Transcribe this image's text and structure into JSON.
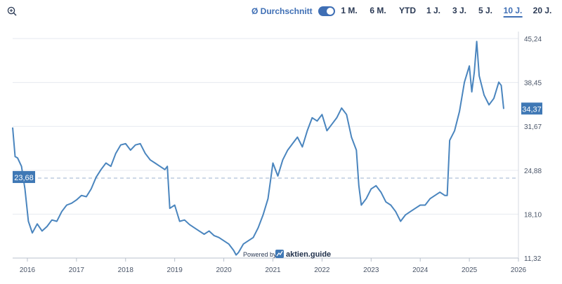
{
  "toolbar": {
    "zoom_icon": "zoom-in-icon",
    "average_label": "Ø Durchschnitt",
    "average_enabled": true,
    "ranges": [
      "1 M.",
      "6 M.",
      "YTD",
      "1 J.",
      "3 J.",
      "5 J.",
      "10 J.",
      "20 J."
    ],
    "active_range": "10 J."
  },
  "watermark": {
    "prefix": "Powered by",
    "brand": "aktien.guide"
  },
  "colors": {
    "line": "#4a85be",
    "average_line": "#9bb1cf",
    "badge": "#3f78b5",
    "accent": "#3f6fb5",
    "grid": "#e6e9ef"
  },
  "chart_data": {
    "type": "line",
    "x_ticks": [
      "2016",
      "2017",
      "2018",
      "2019",
      "2020",
      "2021",
      "2022",
      "2023",
      "2024",
      "2025",
      "2026"
    ],
    "y_ticks": [
      "11,32",
      "18,10",
      "24,88",
      "31,67",
      "38,45",
      "45,24"
    ],
    "ylim": [
      11.32,
      45.24
    ],
    "xlim": [
      2015.7,
      2026.0
    ],
    "average": 23.68,
    "average_label": "23,68",
    "last_value": 34.37,
    "last_label": "34,37",
    "grid": "horizontal",
    "series": [
      {
        "x": [
          2015.7,
          2015.75,
          2015.8,
          2015.88,
          2015.95,
          2016.02,
          2016.1,
          2016.2,
          2016.3,
          2016.4,
          2016.5,
          2016.6,
          2016.7,
          2016.8,
          2016.9,
          2017.0,
          2017.1,
          2017.2,
          2017.3,
          2017.4,
          2017.5,
          2017.6,
          2017.7,
          2017.8,
          2017.9,
          2018.0,
          2018.1,
          2018.2,
          2018.3,
          2018.4,
          2018.5,
          2018.6,
          2018.7,
          2018.8,
          2018.85,
          2018.9,
          2019.0,
          2019.1,
          2019.2,
          2019.3,
          2019.4,
          2019.5,
          2019.6,
          2019.7,
          2019.8,
          2019.9,
          2020.0,
          2020.1,
          2020.2,
          2020.25,
          2020.3,
          2020.4,
          2020.5,
          2020.6,
          2020.7,
          2020.8,
          2020.9,
          2021.0,
          2021.1,
          2021.2,
          2021.3,
          2021.4,
          2021.5,
          2021.6,
          2021.7,
          2021.8,
          2021.9,
          2022.0,
          2022.1,
          2022.2,
          2022.3,
          2022.4,
          2022.5,
          2022.6,
          2022.7,
          2022.75,
          2022.8,
          2022.9,
          2023.0,
          2023.1,
          2023.2,
          2023.3,
          2023.4,
          2023.5,
          2023.6,
          2023.7,
          2023.8,
          2023.9,
          2024.0,
          2024.1,
          2024.2,
          2024.3,
          2024.4,
          2024.5,
          2024.55,
          2024.6,
          2024.7,
          2024.8,
          2024.9,
          2025.0,
          2025.05,
          2025.1,
          2025.15,
          2025.2,
          2025.3,
          2025.4,
          2025.5,
          2025.6,
          2025.65,
          2025.7
        ],
        "y": [
          31.5,
          27.0,
          26.8,
          25.5,
          22.0,
          17.0,
          15.2,
          16.6,
          15.5,
          16.2,
          17.2,
          17.0,
          18.5,
          19.5,
          19.8,
          20.3,
          21.0,
          20.8,
          22.0,
          23.8,
          25.0,
          26.0,
          25.5,
          27.5,
          28.8,
          29.0,
          28.0,
          28.8,
          29.0,
          27.5,
          26.5,
          26.0,
          25.5,
          25.0,
          25.5,
          19.0,
          19.5,
          17.0,
          17.2,
          16.5,
          16.0,
          15.5,
          15.0,
          15.5,
          14.8,
          14.5,
          14.0,
          13.5,
          12.5,
          11.8,
          12.2,
          13.5,
          14.0,
          14.5,
          16.0,
          18.0,
          20.5,
          26.0,
          24.0,
          26.5,
          28.0,
          29.0,
          30.0,
          28.5,
          31.0,
          33.0,
          32.5,
          33.5,
          31.0,
          32.0,
          33.0,
          34.5,
          33.5,
          30.0,
          28.0,
          22.5,
          19.5,
          20.5,
          22.0,
          22.5,
          21.5,
          20.0,
          19.5,
          18.5,
          17.0,
          18.0,
          18.5,
          19.0,
          19.5,
          19.5,
          20.5,
          21.0,
          21.5,
          21.0,
          21.0,
          29.5,
          31.0,
          34.0,
          38.5,
          41.0,
          37.0,
          40.0,
          44.8,
          39.5,
          36.5,
          35.0,
          36.0,
          38.5,
          38.0,
          34.37
        ]
      }
    ]
  }
}
